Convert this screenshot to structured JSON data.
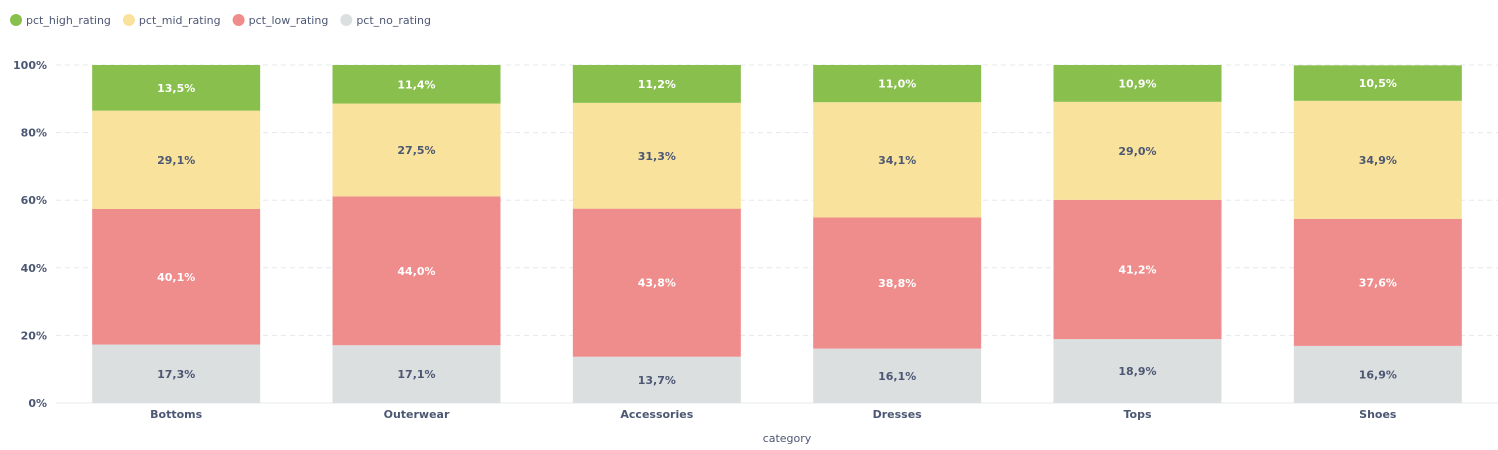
{
  "chart_data": {
    "type": "bar",
    "stacked": true,
    "normalized": true,
    "categories": [
      "Bottoms",
      "Outerwear",
      "Accessories",
      "Dresses",
      "Tops",
      "Shoes"
    ],
    "series": [
      {
        "name": "pct_no_rating",
        "color": "#dcdfe0",
        "label_color": "#4c5773",
        "values": [
          17.3,
          17.1,
          13.7,
          16.1,
          18.9,
          16.9
        ],
        "labels": [
          "17,3%",
          "17,1%",
          "13,7%",
          "16,1%",
          "18,9%",
          "16,9%"
        ]
      },
      {
        "name": "pct_low_rating",
        "color": "#ef8c8c",
        "label_color": "#ffffff",
        "values": [
          40.1,
          44.0,
          43.8,
          38.8,
          41.2,
          37.6
        ],
        "labels": [
          "40,1%",
          "44,0%",
          "43,8%",
          "38,8%",
          "41,2%",
          "37,6%"
        ]
      },
      {
        "name": "pct_mid_rating",
        "color": "#f9e39c",
        "label_color": "#4c5773",
        "values": [
          29.1,
          27.5,
          31.3,
          34.1,
          29.0,
          34.9
        ],
        "labels": [
          "29,1%",
          "27,5%",
          "31,3%",
          "34,1%",
          "29,0%",
          "34,9%"
        ]
      },
      {
        "name": "pct_high_rating",
        "color": "#88bf4d",
        "label_color": "#ffffff",
        "values": [
          13.5,
          11.4,
          11.2,
          11.0,
          10.9,
          10.5
        ],
        "labels": [
          "13,5%",
          "11,4%",
          "11,2%",
          "11,0%",
          "10,9%",
          "10,5%"
        ]
      }
    ],
    "legend": [
      {
        "name": "pct_high_rating",
        "color": "#88bf4d"
      },
      {
        "name": "pct_mid_rating",
        "color": "#f9e39c"
      },
      {
        "name": "pct_low_rating",
        "color": "#ef8c8c"
      },
      {
        "name": "pct_no_rating",
        "color": "#dcdfe0"
      }
    ],
    "legend_position": "top-left",
    "y_ticks": [
      "0%",
      "20%",
      "40%",
      "60%",
      "80%",
      "100%"
    ],
    "ylim": [
      0,
      100
    ],
    "xlabel": "category",
    "ylabel": "",
    "grid": true
  }
}
